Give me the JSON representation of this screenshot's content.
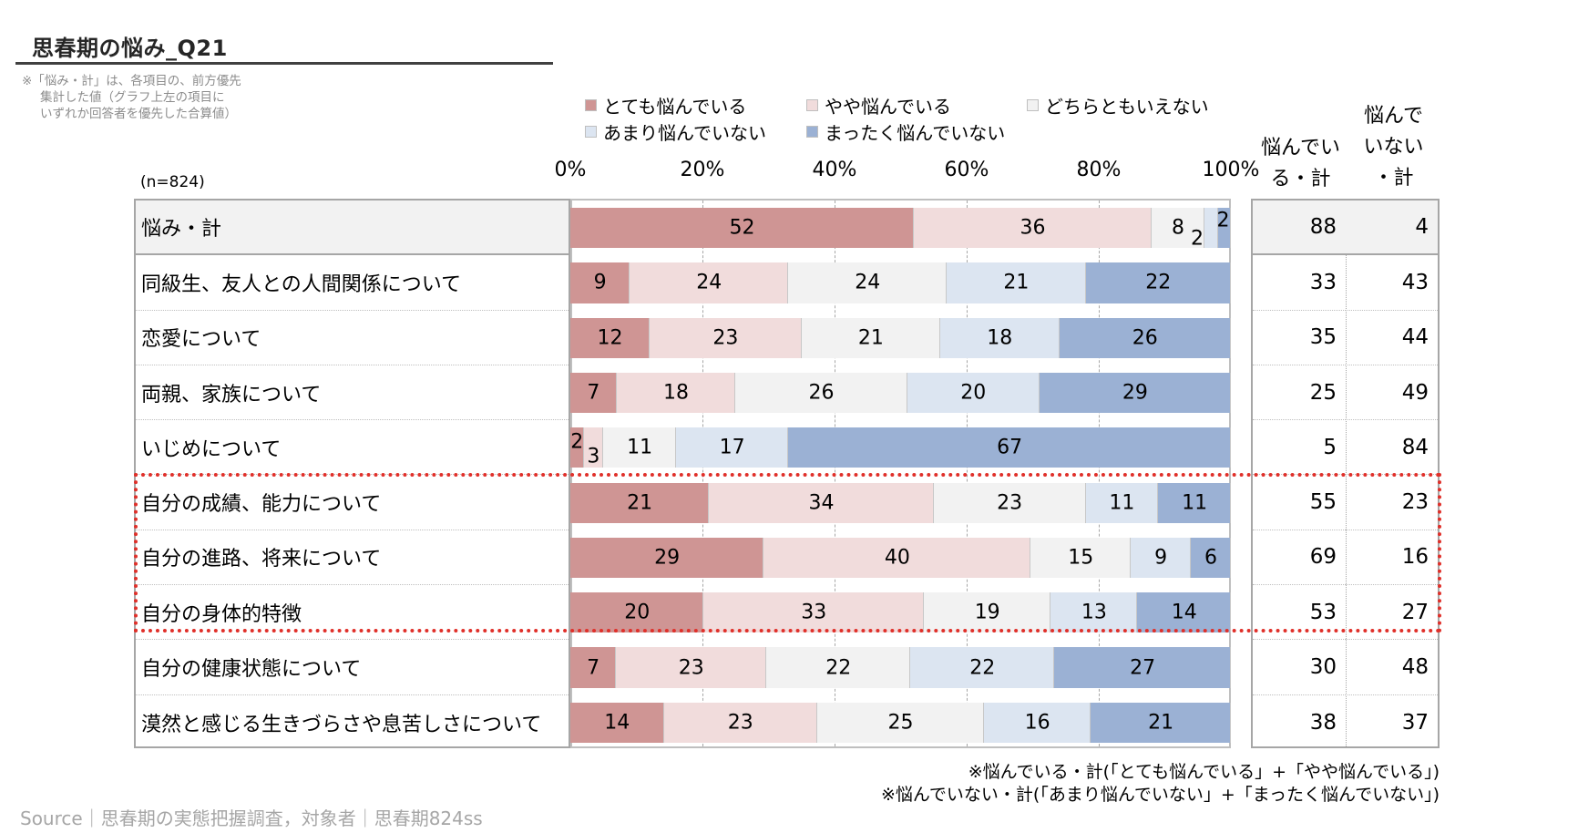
{
  "title": "思春期の悩み_Q21",
  "note": [
    "※「悩み・計」は、各項目の、前方優先",
    "集計した値（グラフ上左の項目に",
    "いずれか回答者を優先した合算値）"
  ],
  "sample_size": "(n=824)",
  "column_headers": {
    "worried_total": [
      "悩んでい",
      "る・計"
    ],
    "not_worried_total": [
      "悩んで",
      "いない",
      "・計"
    ]
  },
  "footnotes": [
    "※悩んでいる・計(「とても悩んでいる」+「やや悩んでいる」)",
    "※悩んでいない・計(「あまり悩んでいない」+「まったく悩んでいない」)"
  ],
  "source": "Source｜思春期の実態把握調査，対象者｜思春期824ss",
  "highlighted_rows": [
    "自分の成績、能力について",
    "自分の進路、将来について",
    "自分の身体的特徴"
  ],
  "colors": {
    "very_worried": "#CF9594",
    "somewhat_worried": "#F1DCDC",
    "neither": "#F2F2F2",
    "not_very_worried": "#DCE5F1",
    "not_worried_at_all": "#9BB1D4",
    "highlight": "#E0302A",
    "header_row_bg": "#F2F2F2"
  },
  "chart_data": {
    "type": "bar",
    "orientation": "horizontal-stacked-100",
    "title": "思春期の悩み_Q21",
    "xlabel": "",
    "ylabel": "",
    "xlim": [
      0,
      100
    ],
    "x_ticks": [
      "0%",
      "20%",
      "40%",
      "60%",
      "80%",
      "100%"
    ],
    "legend_position": "top",
    "grid": true,
    "categories": [
      "悩み・計",
      "同級生、友人との人間関係について",
      "恋愛について",
      "両親、家族について",
      "いじめについて",
      "自分の成績、能力について",
      "自分の進路、将来について",
      "自分の身体的特徴",
      "自分の健康状態について",
      "漠然と感じる生きづらさや息苦しさについて"
    ],
    "series": [
      {
        "name": "とても悩んでいる",
        "values": [
          52,
          9,
          12,
          7,
          2,
          21,
          29,
          20,
          7,
          14
        ]
      },
      {
        "name": "やや悩んでいる",
        "values": [
          36,
          24,
          23,
          18,
          3,
          34,
          40,
          33,
          23,
          23
        ]
      },
      {
        "name": "どちらともいえない",
        "values": [
          8,
          24,
          21,
          26,
          11,
          23,
          15,
          19,
          22,
          25
        ]
      },
      {
        "name": "あまり悩んでいない",
        "values": [
          2,
          21,
          18,
          20,
          17,
          11,
          9,
          13,
          22,
          16
        ]
      },
      {
        "name": "まったく悩んでいない",
        "values": [
          2,
          22,
          26,
          29,
          67,
          11,
          6,
          14,
          27,
          21
        ]
      }
    ],
    "totals": {
      "worried_total": [
        88,
        33,
        35,
        25,
        5,
        55,
        69,
        53,
        30,
        38
      ],
      "not_worried_total": [
        4,
        43,
        44,
        49,
        84,
        23,
        16,
        27,
        48,
        37
      ]
    }
  }
}
